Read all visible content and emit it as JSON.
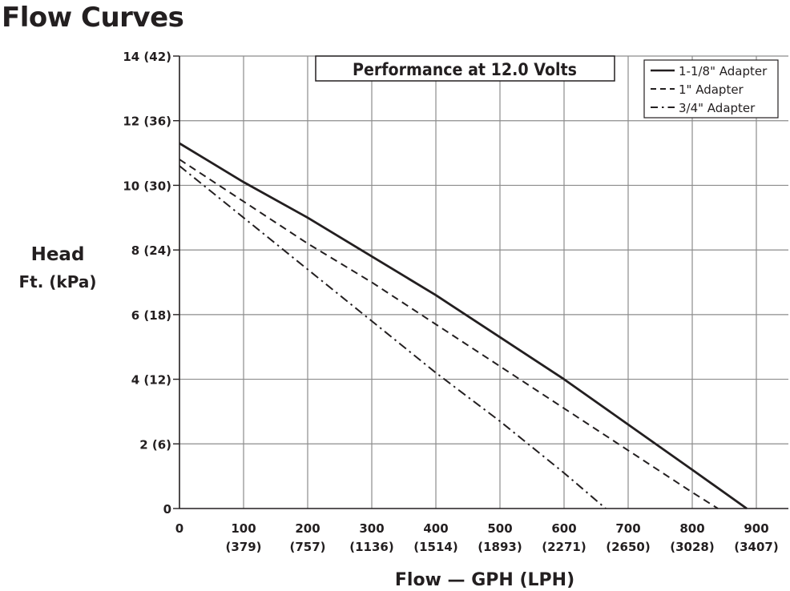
{
  "page": {
    "title": "Flow Curves"
  },
  "chart_data": {
    "type": "line",
    "title": "Performance at 12.0 Volts",
    "xlabel": "Flow — GPH (LPH)",
    "ylabel_line1": "Head",
    "ylabel_line2": "Ft. (kPa)",
    "xlim": [
      0,
      950
    ],
    "ylim": [
      0,
      14
    ],
    "x_ticks": [
      {
        "value": 0,
        "label": "0",
        "sub": ""
      },
      {
        "value": 100,
        "label": "100",
        "sub": "(379)"
      },
      {
        "value": 200,
        "label": "200",
        "sub": "(757)"
      },
      {
        "value": 300,
        "label": "300",
        "sub": "(1136)"
      },
      {
        "value": 400,
        "label": "400",
        "sub": "(1514)"
      },
      {
        "value": 500,
        "label": "500",
        "sub": "(1893)"
      },
      {
        "value": 600,
        "label": "600",
        "sub": "(2271)"
      },
      {
        "value": 700,
        "label": "700",
        "sub": "(2650)"
      },
      {
        "value": 800,
        "label": "800",
        "sub": "(3028)"
      },
      {
        "value": 900,
        "label": "900",
        "sub": "(3407)"
      }
    ],
    "y_ticks": [
      {
        "value": 0,
        "label": "0"
      },
      {
        "value": 2,
        "label": "2 (6)"
      },
      {
        "value": 4,
        "label": "4 (12)"
      },
      {
        "value": 6,
        "label": "6 (18)"
      },
      {
        "value": 8,
        "label": "8 (24)"
      },
      {
        "value": 10,
        "label": "10 (30)"
      },
      {
        "value": 12,
        "label": "12 (36)"
      },
      {
        "value": 14,
        "label": "14 (42)"
      }
    ],
    "grid": true,
    "legend_position": "top-right",
    "series": [
      {
        "name": "1-1/8\" Adapter",
        "style": "solid",
        "x": [
          0,
          100,
          200,
          300,
          400,
          500,
          600,
          700,
          800,
          885
        ],
        "y": [
          11.3,
          10.1,
          9.0,
          7.8,
          6.6,
          5.3,
          4.0,
          2.6,
          1.2,
          0
        ]
      },
      {
        "name": "1\" Adapter",
        "style": "dashed",
        "x": [
          0,
          100,
          200,
          300,
          400,
          500,
          600,
          700,
          800,
          840
        ],
        "y": [
          10.8,
          9.5,
          8.2,
          7.0,
          5.7,
          4.4,
          3.1,
          1.8,
          0.5,
          0
        ]
      },
      {
        "name": "3/4\" Adapter",
        "style": "dash-dot",
        "x": [
          0,
          100,
          200,
          300,
          400,
          500,
          600,
          665
        ],
        "y": [
          10.6,
          9.0,
          7.4,
          5.8,
          4.2,
          2.7,
          1.1,
          0
        ]
      }
    ]
  },
  "colors": {
    "line": "#231f20",
    "grid": "#8c8c8c",
    "background": "#ffffff"
  }
}
